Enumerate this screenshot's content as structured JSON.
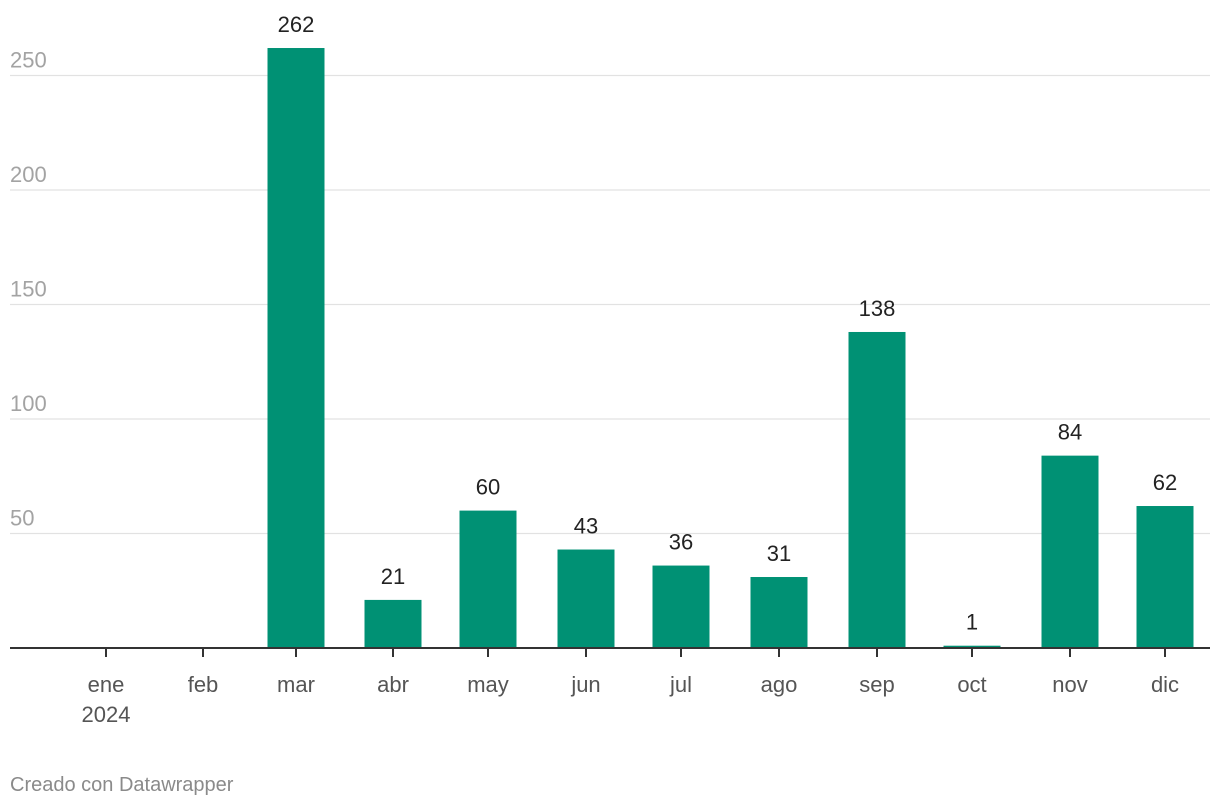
{
  "chart_data": {
    "type": "bar",
    "title": "",
    "xlabel": "",
    "ylabel": "",
    "categories": [
      "ene",
      "feb",
      "mar",
      "abr",
      "may",
      "jun",
      "jul",
      "ago",
      "sep",
      "oct",
      "nov",
      "dic"
    ],
    "year_label": "2024",
    "values": [
      0,
      0,
      262,
      21,
      60,
      43,
      36,
      31,
      138,
      1,
      84,
      62
    ],
    "data_labels": [
      "",
      "",
      "262",
      "21",
      "60",
      "43",
      "36",
      "31",
      "138",
      "1",
      "84",
      "62"
    ],
    "ylim": [
      0,
      262
    ],
    "yticks": [
      50,
      100,
      150,
      200,
      250
    ],
    "grid": true,
    "legend": "none",
    "bar_color": "#009174"
  },
  "footer": {
    "credit": "Creado con Datawrapper"
  }
}
